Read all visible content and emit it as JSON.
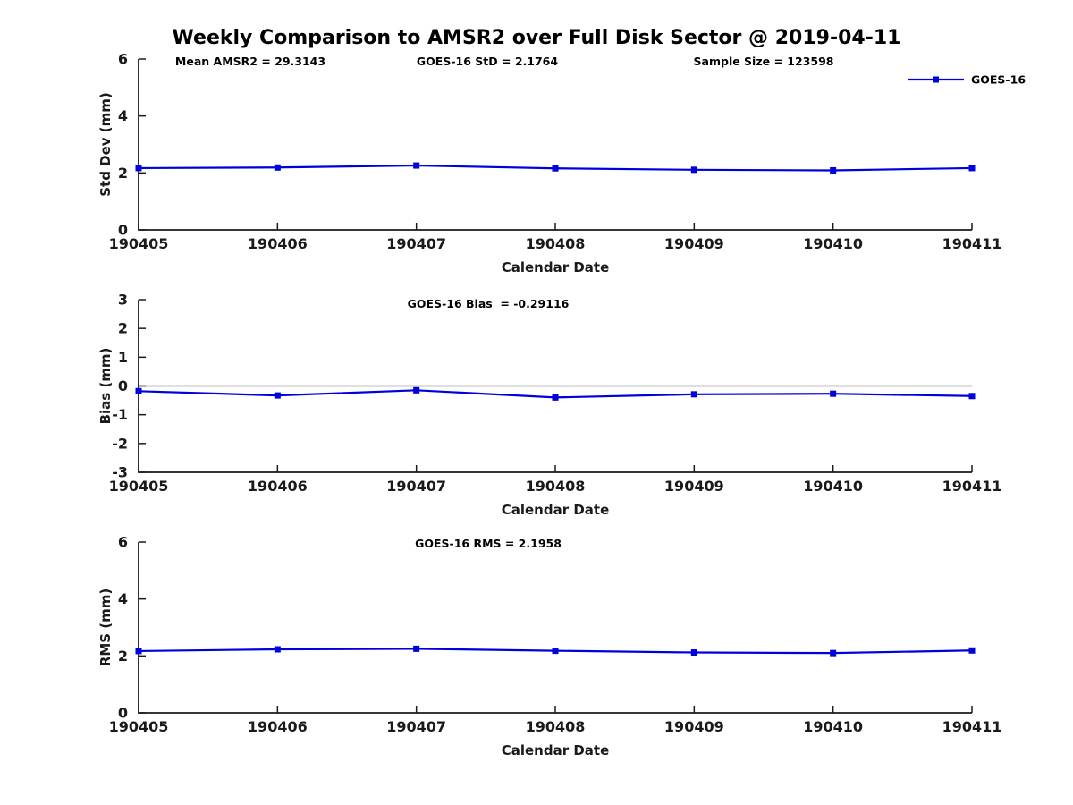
{
  "title": "Weekly Comparison to AMSR2 over Full Disk Sector @ 2019-04-11",
  "colors": {
    "series_blue": "#0000DD",
    "axis": "#1a1a1a",
    "zero_line": "#000000",
    "background": "#ffffff"
  },
  "legend": {
    "label": "GOES-16",
    "position": "top-right",
    "marker": "square"
  },
  "chart_data": [
    {
      "type": "line",
      "name": "std-dev-vs-date",
      "annotations": [
        "Mean AMSR2 = 29.3143",
        "GOES-16 StD = 2.1764",
        "Sample Size = 123598"
      ],
      "xlabel": "Calendar Date",
      "ylabel": "Std Dev (mm)",
      "categories": [
        "190405",
        "190406",
        "190407",
        "190408",
        "190409",
        "190410",
        "190411"
      ],
      "ylim": [
        0,
        6
      ],
      "y_ticks": [
        0,
        2,
        4,
        6
      ],
      "grid": false,
      "zero_line": false,
      "legend_position": "top-right",
      "series": [
        {
          "name": "GOES-16",
          "color": "#0000DD",
          "marker": "square",
          "values": [
            2.17,
            2.19,
            2.26,
            2.16,
            2.11,
            2.09,
            2.17
          ]
        }
      ]
    },
    {
      "type": "line",
      "name": "bias-vs-date",
      "annotations": [
        "GOES-16 Bias  = -0.29116"
      ],
      "xlabel": "Calendar Date",
      "ylabel": "Bias (mm)",
      "categories": [
        "190405",
        "190406",
        "190407",
        "190408",
        "190409",
        "190410",
        "190411"
      ],
      "ylim": [
        -3,
        3
      ],
      "y_ticks": [
        -3,
        -2,
        -1,
        0,
        1,
        2,
        3
      ],
      "grid": false,
      "zero_line": true,
      "series": [
        {
          "name": "GOES-16",
          "color": "#0000DD",
          "marker": "square",
          "values": [
            -0.18,
            -0.33,
            -0.15,
            -0.4,
            -0.29,
            -0.27,
            -0.35
          ]
        }
      ]
    },
    {
      "type": "line",
      "name": "rms-vs-date",
      "annotations": [
        "GOES-16 RMS = 2.1958"
      ],
      "xlabel": "Calendar Date",
      "ylabel": "RMS (mm)",
      "categories": [
        "190405",
        "190406",
        "190407",
        "190408",
        "190409",
        "190410",
        "190411"
      ],
      "ylim": [
        0,
        6
      ],
      "y_ticks": [
        0,
        2,
        4,
        6
      ],
      "grid": false,
      "zero_line": false,
      "series": [
        {
          "name": "GOES-16",
          "color": "#0000DD",
          "marker": "square",
          "values": [
            2.17,
            2.23,
            2.25,
            2.18,
            2.12,
            2.1,
            2.19
          ]
        }
      ]
    }
  ]
}
